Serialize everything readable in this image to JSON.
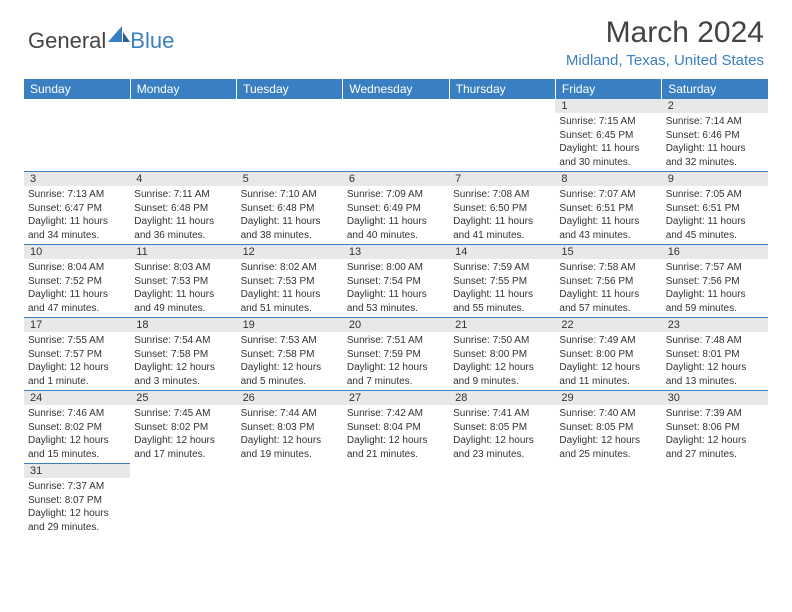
{
  "logo": {
    "general": "General",
    "blue": "Blue"
  },
  "title": "March 2024",
  "location": "Midland, Texas, United States",
  "colors": {
    "header_bg": "#3a7fc2",
    "header_text": "#ffffff",
    "daynum_bg": "#e8e8e8",
    "border": "#3a7fc2",
    "location_text": "#3a7fc2"
  },
  "weekdays": [
    "Sunday",
    "Monday",
    "Tuesday",
    "Wednesday",
    "Thursday",
    "Friday",
    "Saturday"
  ],
  "weeks": [
    [
      null,
      null,
      null,
      null,
      null,
      {
        "n": "1",
        "sr": "Sunrise: 7:15 AM",
        "ss": "Sunset: 6:45 PM",
        "dl": "Daylight: 11 hours and 30 minutes."
      },
      {
        "n": "2",
        "sr": "Sunrise: 7:14 AM",
        "ss": "Sunset: 6:46 PM",
        "dl": "Daylight: 11 hours and 32 minutes."
      }
    ],
    [
      {
        "n": "3",
        "sr": "Sunrise: 7:13 AM",
        "ss": "Sunset: 6:47 PM",
        "dl": "Daylight: 11 hours and 34 minutes."
      },
      {
        "n": "4",
        "sr": "Sunrise: 7:11 AM",
        "ss": "Sunset: 6:48 PM",
        "dl": "Daylight: 11 hours and 36 minutes."
      },
      {
        "n": "5",
        "sr": "Sunrise: 7:10 AM",
        "ss": "Sunset: 6:48 PM",
        "dl": "Daylight: 11 hours and 38 minutes."
      },
      {
        "n": "6",
        "sr": "Sunrise: 7:09 AM",
        "ss": "Sunset: 6:49 PM",
        "dl": "Daylight: 11 hours and 40 minutes."
      },
      {
        "n": "7",
        "sr": "Sunrise: 7:08 AM",
        "ss": "Sunset: 6:50 PM",
        "dl": "Daylight: 11 hours and 41 minutes."
      },
      {
        "n": "8",
        "sr": "Sunrise: 7:07 AM",
        "ss": "Sunset: 6:51 PM",
        "dl": "Daylight: 11 hours and 43 minutes."
      },
      {
        "n": "9",
        "sr": "Sunrise: 7:05 AM",
        "ss": "Sunset: 6:51 PM",
        "dl": "Daylight: 11 hours and 45 minutes."
      }
    ],
    [
      {
        "n": "10",
        "sr": "Sunrise: 8:04 AM",
        "ss": "Sunset: 7:52 PM",
        "dl": "Daylight: 11 hours and 47 minutes."
      },
      {
        "n": "11",
        "sr": "Sunrise: 8:03 AM",
        "ss": "Sunset: 7:53 PM",
        "dl": "Daylight: 11 hours and 49 minutes."
      },
      {
        "n": "12",
        "sr": "Sunrise: 8:02 AM",
        "ss": "Sunset: 7:53 PM",
        "dl": "Daylight: 11 hours and 51 minutes."
      },
      {
        "n": "13",
        "sr": "Sunrise: 8:00 AM",
        "ss": "Sunset: 7:54 PM",
        "dl": "Daylight: 11 hours and 53 minutes."
      },
      {
        "n": "14",
        "sr": "Sunrise: 7:59 AM",
        "ss": "Sunset: 7:55 PM",
        "dl": "Daylight: 11 hours and 55 minutes."
      },
      {
        "n": "15",
        "sr": "Sunrise: 7:58 AM",
        "ss": "Sunset: 7:56 PM",
        "dl": "Daylight: 11 hours and 57 minutes."
      },
      {
        "n": "16",
        "sr": "Sunrise: 7:57 AM",
        "ss": "Sunset: 7:56 PM",
        "dl": "Daylight: 11 hours and 59 minutes."
      }
    ],
    [
      {
        "n": "17",
        "sr": "Sunrise: 7:55 AM",
        "ss": "Sunset: 7:57 PM",
        "dl": "Daylight: 12 hours and 1 minute."
      },
      {
        "n": "18",
        "sr": "Sunrise: 7:54 AM",
        "ss": "Sunset: 7:58 PM",
        "dl": "Daylight: 12 hours and 3 minutes."
      },
      {
        "n": "19",
        "sr": "Sunrise: 7:53 AM",
        "ss": "Sunset: 7:58 PM",
        "dl": "Daylight: 12 hours and 5 minutes."
      },
      {
        "n": "20",
        "sr": "Sunrise: 7:51 AM",
        "ss": "Sunset: 7:59 PM",
        "dl": "Daylight: 12 hours and 7 minutes."
      },
      {
        "n": "21",
        "sr": "Sunrise: 7:50 AM",
        "ss": "Sunset: 8:00 PM",
        "dl": "Daylight: 12 hours and 9 minutes."
      },
      {
        "n": "22",
        "sr": "Sunrise: 7:49 AM",
        "ss": "Sunset: 8:00 PM",
        "dl": "Daylight: 12 hours and 11 minutes."
      },
      {
        "n": "23",
        "sr": "Sunrise: 7:48 AM",
        "ss": "Sunset: 8:01 PM",
        "dl": "Daylight: 12 hours and 13 minutes."
      }
    ],
    [
      {
        "n": "24",
        "sr": "Sunrise: 7:46 AM",
        "ss": "Sunset: 8:02 PM",
        "dl": "Daylight: 12 hours and 15 minutes."
      },
      {
        "n": "25",
        "sr": "Sunrise: 7:45 AM",
        "ss": "Sunset: 8:02 PM",
        "dl": "Daylight: 12 hours and 17 minutes."
      },
      {
        "n": "26",
        "sr": "Sunrise: 7:44 AM",
        "ss": "Sunset: 8:03 PM",
        "dl": "Daylight: 12 hours and 19 minutes."
      },
      {
        "n": "27",
        "sr": "Sunrise: 7:42 AM",
        "ss": "Sunset: 8:04 PM",
        "dl": "Daylight: 12 hours and 21 minutes."
      },
      {
        "n": "28",
        "sr": "Sunrise: 7:41 AM",
        "ss": "Sunset: 8:05 PM",
        "dl": "Daylight: 12 hours and 23 minutes."
      },
      {
        "n": "29",
        "sr": "Sunrise: 7:40 AM",
        "ss": "Sunset: 8:05 PM",
        "dl": "Daylight: 12 hours and 25 minutes."
      },
      {
        "n": "30",
        "sr": "Sunrise: 7:39 AM",
        "ss": "Sunset: 8:06 PM",
        "dl": "Daylight: 12 hours and 27 minutes."
      }
    ],
    [
      {
        "n": "31",
        "sr": "Sunrise: 7:37 AM",
        "ss": "Sunset: 8:07 PM",
        "dl": "Daylight: 12 hours and 29 minutes."
      },
      null,
      null,
      null,
      null,
      null,
      null
    ]
  ]
}
